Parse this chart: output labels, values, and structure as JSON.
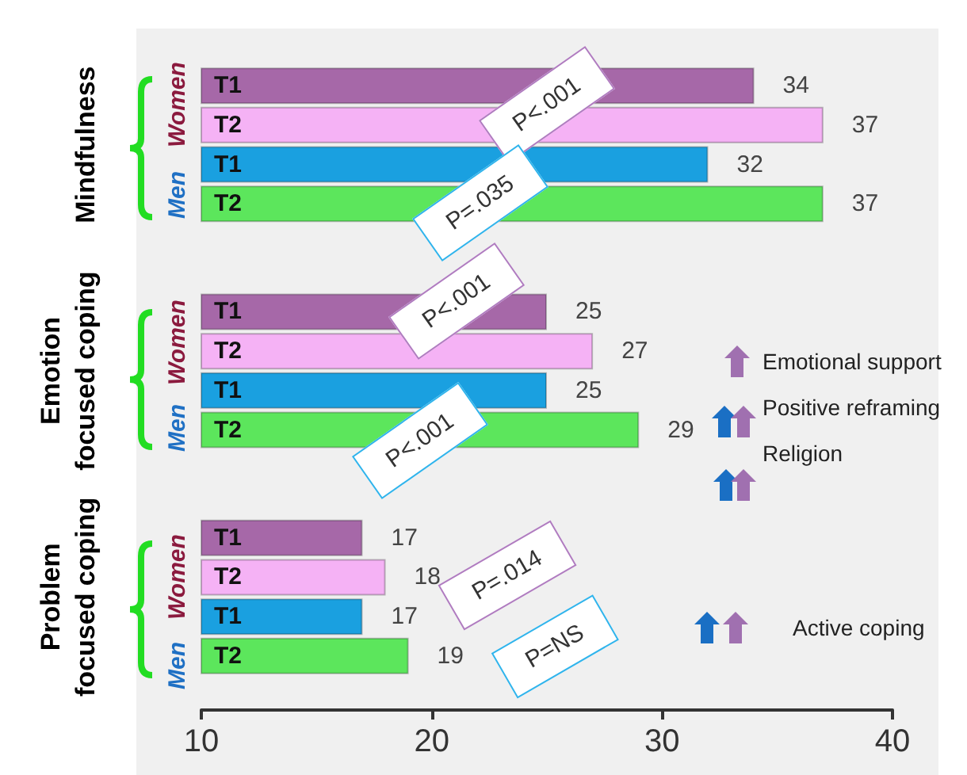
{
  "chart_data": {
    "type": "bar",
    "orientation": "horizontal",
    "categories": [
      "Mindfulness",
      "Emotion focused coping",
      "Problem focused coping"
    ],
    "series": [
      {
        "name": "T1",
        "color": "#a668a8",
        "values": [
          34,
          25,
          17
        ]
      },
      {
        "name": "T2",
        "color": "#f5b2f5",
        "values": [
          37,
          27,
          18
        ]
      },
      {
        "name": "T1",
        "color": "#1aa0e0",
        "values": [
          32,
          25,
          17
        ]
      },
      {
        "name": "T2",
        "color": "#5ce65c",
        "values": [
          37,
          29,
          19
        ]
      }
    ],
    "xlim": [
      10,
      40
    ],
    "xticks": [
      10,
      20,
      30,
      40
    ],
    "data_labels": true,
    "grid": false,
    "legend": false,
    "annotations": [
      "Women",
      "Men",
      "Women",
      "Men",
      "Women",
      "Men",
      "P<.001",
      "P=.035",
      "P<.001",
      "P<.001",
      "P=.014",
      "P=NS",
      "Emotional support",
      "Positive reframing",
      "Religion",
      "Active coping"
    ]
  }
}
